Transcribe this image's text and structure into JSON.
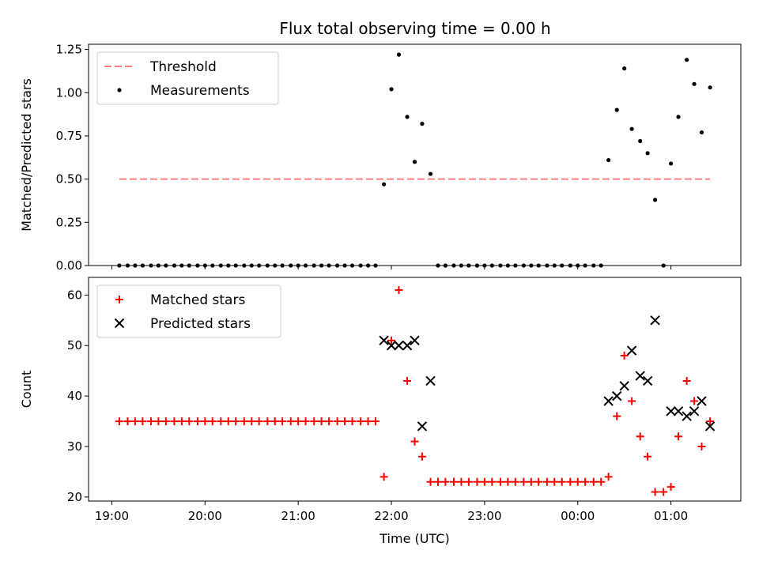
{
  "figure_title": "Flux total observing time = 0.00 h",
  "chart_data": [
    {
      "type": "scatter",
      "ylabel": "Matched/Predicted stars",
      "xlabel": "",
      "ylim": [
        0,
        1.28
      ],
      "yticks": [
        0.0,
        0.25,
        0.5,
        0.75,
        1.0,
        1.25
      ],
      "ytick_labels": [
        "0.00",
        "0.25",
        "0.50",
        "0.75",
        "1.00",
        "1.25"
      ],
      "xticks": [
        19,
        20,
        21,
        22,
        23,
        24,
        25
      ],
      "xtick_labels_shown": false,
      "legend_position": "top-left",
      "threshold": {
        "name": "Threshold",
        "y": 0.5,
        "x_range": [
          19.08,
          25.42
        ],
        "color": "#ff7f7f"
      },
      "series": [
        {
          "name": "Measurements",
          "marker": "dot",
          "color": "#000000",
          "x": [
            19.08,
            19.17,
            19.25,
            19.33,
            19.42,
            19.5,
            19.58,
            19.67,
            19.75,
            19.83,
            19.92,
            20.0,
            20.08,
            20.17,
            20.25,
            20.33,
            20.42,
            20.5,
            20.58,
            20.67,
            20.75,
            20.83,
            20.92,
            21.0,
            21.08,
            21.17,
            21.25,
            21.33,
            21.42,
            21.5,
            21.58,
            21.67,
            21.75,
            21.83,
            21.92,
            22.0,
            22.08,
            22.17,
            22.25,
            22.33,
            22.42,
            22.5,
            22.58,
            22.67,
            22.75,
            22.83,
            22.92,
            23.0,
            23.08,
            23.17,
            23.25,
            23.33,
            23.42,
            23.5,
            23.58,
            23.67,
            23.75,
            23.83,
            23.92,
            24.0,
            24.08,
            24.17,
            24.25,
            24.33,
            24.42,
            24.5,
            24.58,
            24.67,
            24.75,
            24.83,
            24.92,
            25.0,
            25.08,
            25.17,
            25.25,
            25.33,
            25.42
          ],
          "y": [
            0,
            0,
            0,
            0,
            0,
            0,
            0,
            0,
            0,
            0,
            0,
            0,
            0,
            0,
            0,
            0,
            0,
            0,
            0,
            0,
            0,
            0,
            0,
            0,
            0,
            0,
            0,
            0,
            0,
            0,
            0,
            0,
            0,
            0,
            0.47,
            1.02,
            1.22,
            0.86,
            0.6,
            0.82,
            0.53,
            0,
            0,
            0,
            0,
            0,
            0,
            0,
            0,
            0,
            0,
            0,
            0,
            0,
            0,
            0,
            0,
            0,
            0,
            0,
            0,
            0,
            0,
            0.61,
            0.9,
            1.14,
            0.79,
            0.72,
            0.65,
            0.38,
            0,
            0.59,
            0.86,
            1.19,
            1.05,
            0.77,
            1.03
          ]
        }
      ]
    },
    {
      "type": "scatter",
      "ylabel": "Count",
      "xlabel": "Time (UTC)",
      "ylim": [
        19.2,
        63.5
      ],
      "yticks": [
        20,
        30,
        40,
        50,
        60
      ],
      "ytick_labels": [
        "20",
        "30",
        "40",
        "50",
        "60"
      ],
      "xticks": [
        19,
        20,
        21,
        22,
        23,
        24,
        25
      ],
      "xtick_labels": [
        "19:00",
        "20:00",
        "21:00",
        "22:00",
        "23:00",
        "00:00",
        "01:00"
      ],
      "legend_position": "top-left",
      "series": [
        {
          "name": "Matched stars",
          "marker": "plus",
          "color": "#ff0000",
          "x": [
            19.08,
            19.17,
            19.25,
            19.33,
            19.42,
            19.5,
            19.58,
            19.67,
            19.75,
            19.83,
            19.92,
            20.0,
            20.08,
            20.17,
            20.25,
            20.33,
            20.42,
            20.5,
            20.58,
            20.67,
            20.75,
            20.83,
            20.92,
            21.0,
            21.08,
            21.17,
            21.25,
            21.33,
            21.42,
            21.5,
            21.58,
            21.67,
            21.75,
            21.83,
            21.92,
            22.0,
            22.08,
            22.17,
            22.25,
            22.33,
            22.42,
            22.5,
            22.58,
            22.67,
            22.75,
            22.83,
            22.92,
            23.0,
            23.08,
            23.17,
            23.25,
            23.33,
            23.42,
            23.5,
            23.58,
            23.67,
            23.75,
            23.83,
            23.92,
            24.0,
            24.08,
            24.17,
            24.25,
            24.33,
            24.42,
            24.5,
            24.58,
            24.67,
            24.75,
            24.83,
            24.92,
            25.0,
            25.08,
            25.17,
            25.25,
            25.33,
            25.42
          ],
          "y": [
            35,
            35,
            35,
            35,
            35,
            35,
            35,
            35,
            35,
            35,
            35,
            35,
            35,
            35,
            35,
            35,
            35,
            35,
            35,
            35,
            35,
            35,
            35,
            35,
            35,
            35,
            35,
            35,
            35,
            35,
            35,
            35,
            35,
            35,
            24,
            51,
            61,
            43,
            31,
            28,
            23,
            23,
            23,
            23,
            23,
            23,
            23,
            23,
            23,
            23,
            23,
            23,
            23,
            23,
            23,
            23,
            23,
            23,
            23,
            23,
            23,
            23,
            23,
            24,
            36,
            48,
            39,
            32,
            28,
            21,
            21,
            22,
            32,
            43,
            39,
            30,
            35
          ]
        },
        {
          "name": "Predicted stars",
          "marker": "x",
          "color": "#000000",
          "x": [
            21.92,
            22.0,
            22.08,
            22.17,
            22.25,
            22.33,
            22.42,
            24.33,
            24.42,
            24.5,
            24.58,
            24.67,
            24.75,
            24.83,
            25.0,
            25.08,
            25.17,
            25.25,
            25.33,
            25.42
          ],
          "y": [
            51,
            50,
            50,
            50,
            51,
            34,
            43,
            39,
            40,
            42,
            49,
            44,
            43,
            55,
            37,
            37,
            36,
            37,
            39,
            34
          ]
        }
      ]
    }
  ]
}
